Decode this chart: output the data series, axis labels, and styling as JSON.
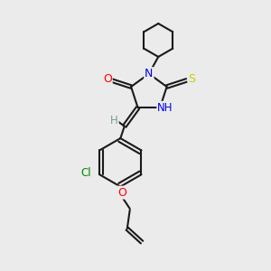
{
  "background_color": "#ebebeb",
  "bond_color": "#1a1a1a",
  "atom_colors": {
    "O": "#ff0000",
    "N": "#0000ee",
    "S": "#cccc00",
    "Cl": "#008800",
    "C": "#1a1a1a",
    "H": "#7a9a9a"
  },
  "lw": 1.5,
  "dbo": 0.07
}
